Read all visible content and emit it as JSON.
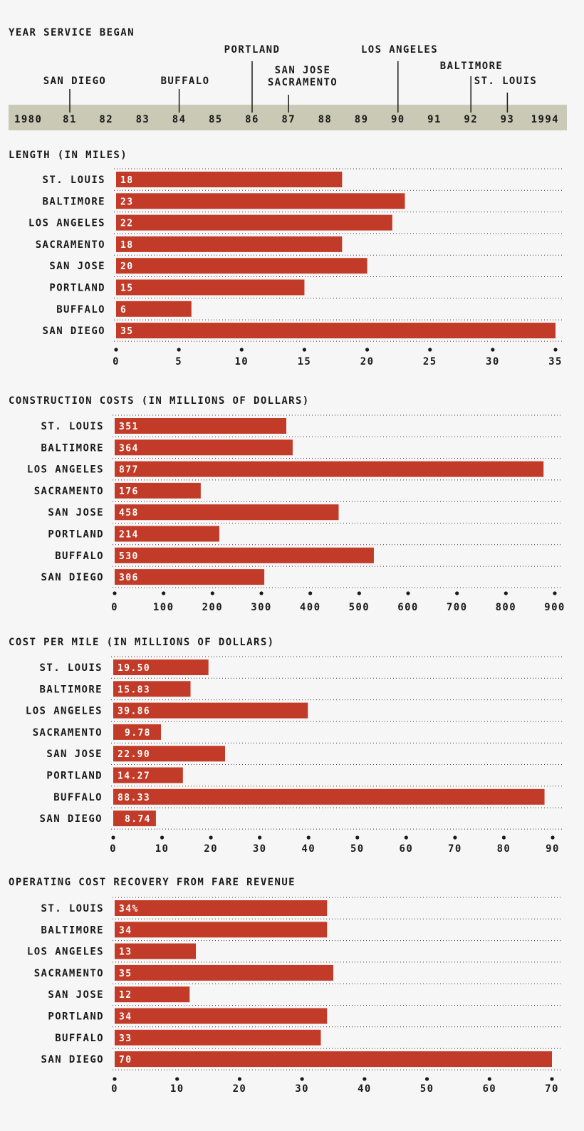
{
  "timeline": {
    "title": "YEAR SERVICE BEGAN",
    "year_labels": [
      "1980",
      "81",
      "82",
      "83",
      "84",
      "85",
      "86",
      "87",
      "88",
      "89",
      "90",
      "91",
      "92",
      "93",
      "1994"
    ],
    "events": [
      {
        "label": [
          "SAN DIEGO"
        ],
        "year": 1981
      },
      {
        "label": [
          "BUFFALO"
        ],
        "year": 1984
      },
      {
        "label": [
          "PORTLAND"
        ],
        "year": 1986
      },
      {
        "label": [
          "SAN JOSE",
          "SACRAMENTO"
        ],
        "year": 1987
      },
      {
        "label": [
          "LOS ANGELES"
        ],
        "year": 1990
      },
      {
        "label": [
          "BALTIMORE"
        ],
        "year": 1992
      },
      {
        "label": [
          "ST. LOUIS"
        ],
        "year": 1993
      }
    ],
    "band_color": "#c9c9b5"
  },
  "chart_data": [
    {
      "type": "bar",
      "orientation": "horizontal",
      "title": "LENGTH (IN MILES)",
      "categories": [
        "ST. LOUIS",
        "BALTIMORE",
        "LOS ANGELES",
        "SACRAMENTO",
        "SAN JOSE",
        "PORTLAND",
        "BUFFALO",
        "SAN DIEGO"
      ],
      "values": [
        18,
        23,
        22,
        18,
        20,
        15,
        6,
        35
      ],
      "value_labels": [
        "18",
        "23",
        "22",
        "18",
        "20",
        "15",
        "6",
        "35"
      ],
      "xlim": [
        0,
        35
      ],
      "ticks": [
        0,
        5,
        10,
        15,
        20,
        25,
        30,
        35
      ],
      "tick_labels": [
        "0",
        "5",
        "10",
        "15",
        "20",
        "25",
        "30",
        "35"
      ]
    },
    {
      "type": "bar",
      "orientation": "horizontal",
      "title": "CONSTRUCTION COSTS (IN MILLIONS OF DOLLARS)",
      "categories": [
        "ST. LOUIS",
        "BALTIMORE",
        "LOS ANGELES",
        "SACRAMENTO",
        "SAN JOSE",
        "PORTLAND",
        "BUFFALO",
        "SAN DIEGO"
      ],
      "values": [
        351,
        364,
        877,
        176,
        458,
        214,
        530,
        306
      ],
      "value_labels": [
        "351",
        "364",
        "877",
        "176",
        "458",
        "214",
        "530",
        "306"
      ],
      "xlim": [
        0,
        900
      ],
      "ticks": [
        0,
        100,
        200,
        300,
        400,
        500,
        600,
        700,
        800,
        900
      ],
      "tick_labels": [
        "0",
        "100",
        "200",
        "300",
        "400",
        "500",
        "600",
        "700",
        "800",
        "900"
      ]
    },
    {
      "type": "bar",
      "orientation": "horizontal",
      "title": "COST PER MILE (IN MILLIONS OF DOLLARS)",
      "categories": [
        "ST. LOUIS",
        "BALTIMORE",
        "LOS ANGELES",
        "SACRAMENTO",
        "SAN JOSE",
        "PORTLAND",
        "BUFFALO",
        "SAN DIEGO"
      ],
      "values": [
        19.5,
        15.83,
        39.86,
        9.78,
        22.9,
        14.27,
        88.33,
        8.74
      ],
      "value_labels": [
        "19.50",
        "15.83",
        "39.86",
        "9.78",
        "22.90",
        "14.27",
        "88.33",
        "8.74"
      ],
      "xlim": [
        0,
        90
      ],
      "ticks": [
        0,
        10,
        20,
        30,
        40,
        50,
        60,
        70,
        80,
        90
      ],
      "tick_labels": [
        "0",
        "10",
        "20",
        "30",
        "40",
        "50",
        "60",
        "70",
        "80",
        "90"
      ]
    },
    {
      "type": "bar",
      "orientation": "horizontal",
      "title": "OPERATING COST RECOVERY FROM FARE REVENUE",
      "categories": [
        "ST. LOUIS",
        "BALTIMORE",
        "LOS ANGELES",
        "SACRAMENTO",
        "SAN JOSE",
        "PORTLAND",
        "BUFFALO",
        "SAN DIEGO"
      ],
      "values": [
        34,
        34,
        13,
        35,
        12,
        34,
        33,
        70
      ],
      "value_labels": [
        "34%",
        "34",
        "13",
        "35",
        "12",
        "34",
        "33",
        "70"
      ],
      "xlim": [
        0,
        70
      ],
      "ticks": [
        0,
        10,
        20,
        30,
        40,
        50,
        60,
        70
      ],
      "tick_labels": [
        "0",
        "10",
        "20",
        "30",
        "40",
        "50",
        "60",
        "70"
      ]
    }
  ],
  "colors": {
    "bar": "#c23a28",
    "text": "#1a1a1a",
    "value_text": "#ffffff"
  }
}
